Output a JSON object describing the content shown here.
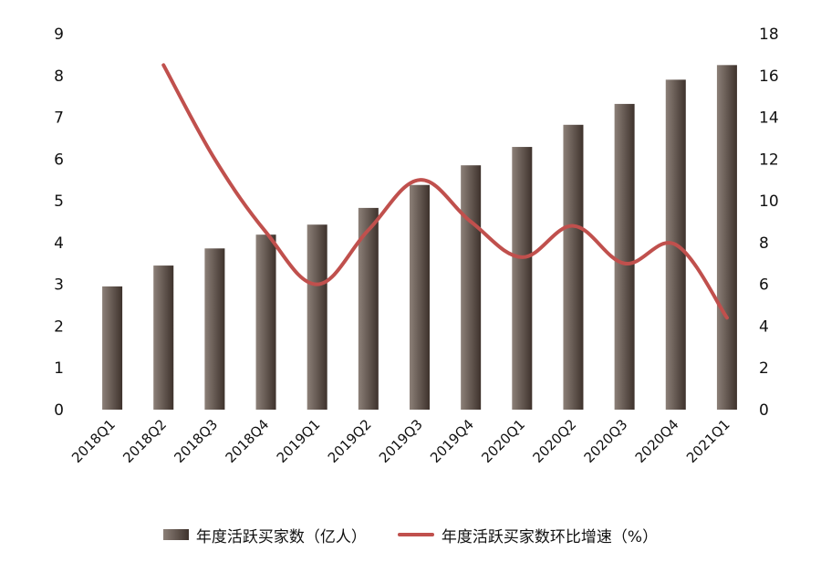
{
  "chart_data": {
    "type": "bar",
    "categories": [
      "2018Q1",
      "2018Q2",
      "2018Q3",
      "2018Q4",
      "2019Q1",
      "2019Q2",
      "2019Q3",
      "2019Q4",
      "2020Q1",
      "2020Q2",
      "2020Q3",
      "2020Q4",
      "2021Q1"
    ],
    "series": [
      {
        "name": "年度活跃买家数（亿人）",
        "type": "bar",
        "axis": "left",
        "values": [
          2.95,
          3.45,
          3.86,
          4.19,
          4.43,
          4.83,
          5.38,
          5.85,
          6.29,
          6.82,
          7.32,
          7.9,
          8.25
        ]
      },
      {
        "name": "年度活跃买家数环比增速（%）",
        "type": "line",
        "axis": "right",
        "values": [
          null,
          16.5,
          12.0,
          8.5,
          6.0,
          8.6,
          11.0,
          9.0,
          7.3,
          8.8,
          7.0,
          7.9,
          4.4
        ]
      }
    ],
    "ylim_left": [
      0,
      9
    ],
    "yticks_left": [
      0,
      1,
      2,
      3,
      4,
      5,
      6,
      7,
      8,
      9
    ],
    "ylim_right": [
      0,
      18
    ],
    "yticks_right": [
      0,
      2,
      4,
      6,
      8,
      10,
      12,
      14,
      16,
      18
    ],
    "title": "",
    "xlabel": "",
    "ylabel": "",
    "grid": false,
    "legend_position": "bottom",
    "colors": {
      "bar_light": "#8c8078",
      "bar_dark": "#3e322c",
      "line": "#c0504d",
      "text": "#111111"
    }
  },
  "legend": {
    "bar_label": "年度活跃买家数（亿人）",
    "line_label": "年度活跃买家数环比增速（%）"
  }
}
